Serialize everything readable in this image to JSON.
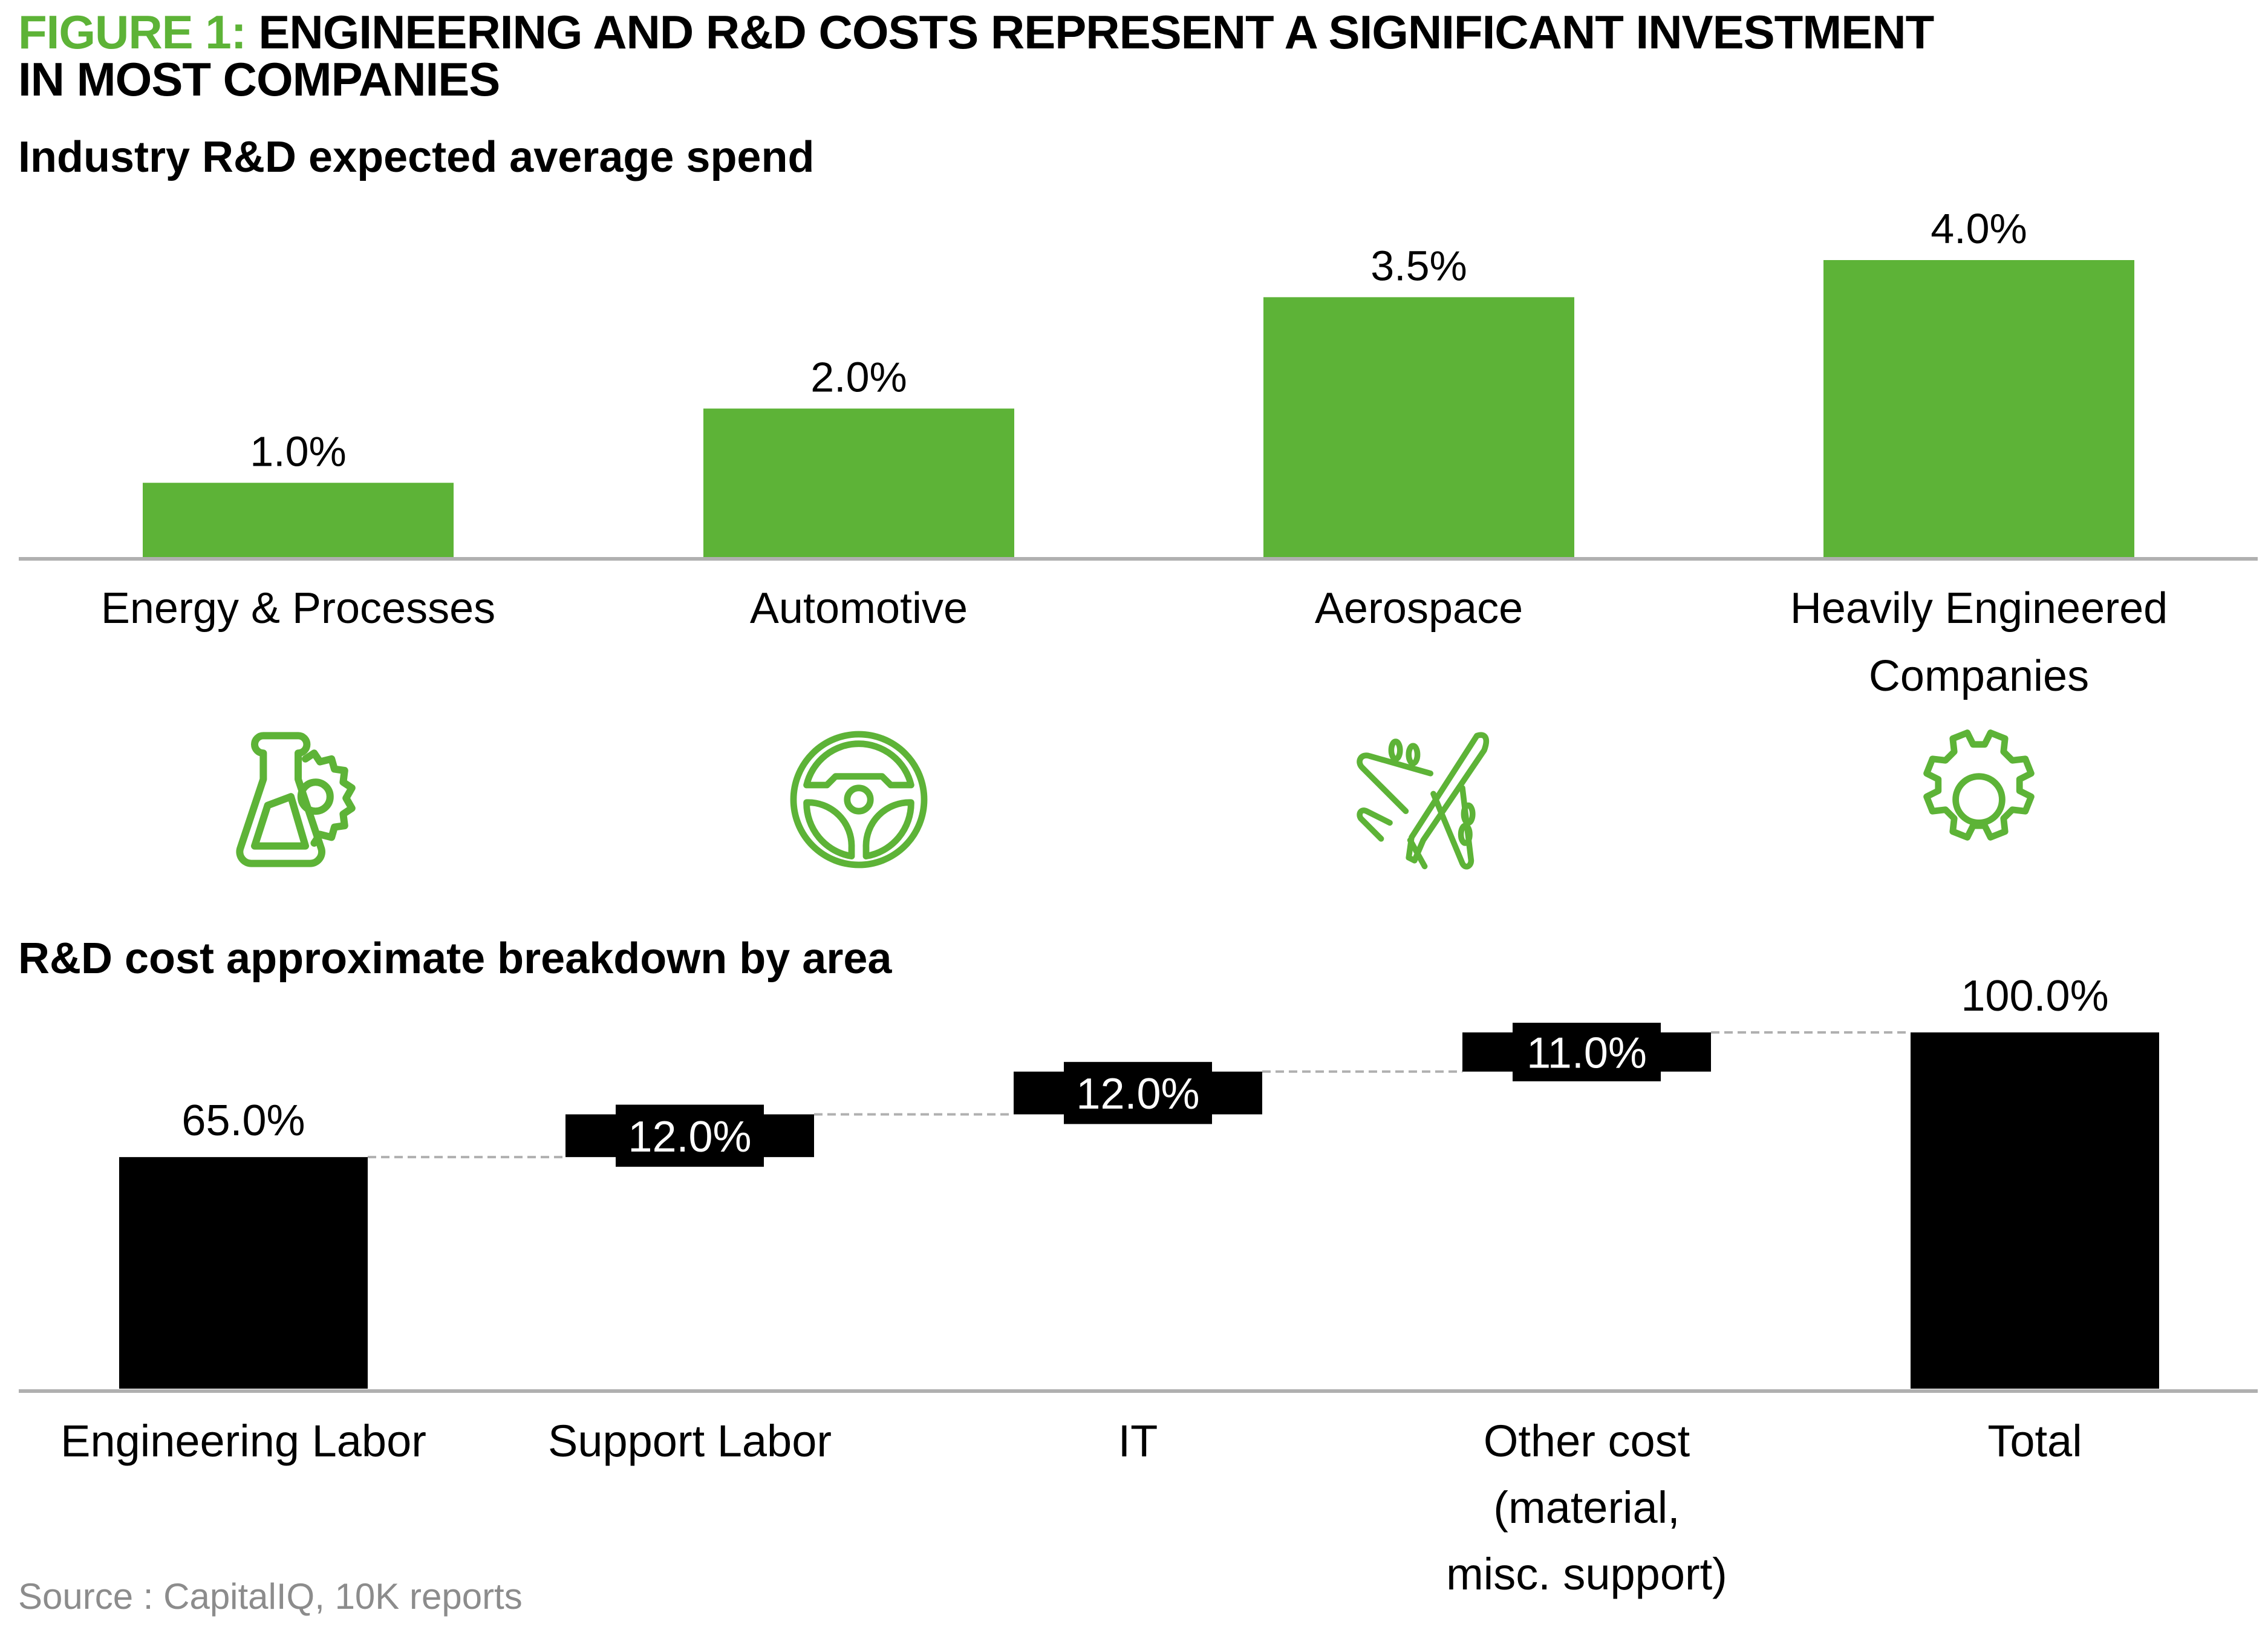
{
  "figure": {
    "label": "FIGURE 1:",
    "title_line1": "ENGINEERING AND R&D COSTS REPRESENT A SIGNIFICANT INVESTMENT",
    "title_line2": "IN MOST COMPANIES",
    "accent_color": "#5db337"
  },
  "source": "Source : CapitalIQ, 10K reports",
  "chart_data": [
    {
      "type": "bar",
      "title": "Industry R&D expected average spend",
      "categories": [
        [
          "Energy & Processes"
        ],
        [
          "Automotive"
        ],
        [
          "Aerospace"
        ],
        [
          "Heavily Engineered",
          "Companies"
        ]
      ],
      "values": [
        1.0,
        2.0,
        3.5,
        4.0
      ],
      "value_labels": [
        "1.0%",
        "2.0%",
        "3.5%",
        "4.0%"
      ],
      "icons": [
        "flask-gear-icon",
        "steering-wheel-icon",
        "airplane-icon",
        "gear-icon"
      ],
      "unit": "%",
      "ylim": [
        0,
        4.0
      ],
      "xlabel": "",
      "ylabel": "",
      "grid": false,
      "color": "#5db337"
    },
    {
      "type": "waterfall",
      "title": "R&D cost approximate breakdown by area",
      "categories": [
        [
          "Engineering Labor"
        ],
        [
          "Support Labor"
        ],
        [
          "IT"
        ],
        [
          "Other cost",
          "(material,",
          "misc. support)"
        ],
        [
          "Total"
        ]
      ],
      "values": [
        65.0,
        12.0,
        12.0,
        11.0,
        100.0
      ],
      "kinds": [
        "absolute",
        "relative",
        "relative",
        "relative",
        "total"
      ],
      "value_labels": [
        "65.0%",
        "12.0%",
        "12.0%",
        "11.0%",
        "100.0%"
      ],
      "unit": "%",
      "ylim": [
        0,
        100
      ],
      "xlabel": "",
      "ylabel": "",
      "grid": false,
      "color": "#000000",
      "connector_color": "#b0b0b0"
    }
  ]
}
